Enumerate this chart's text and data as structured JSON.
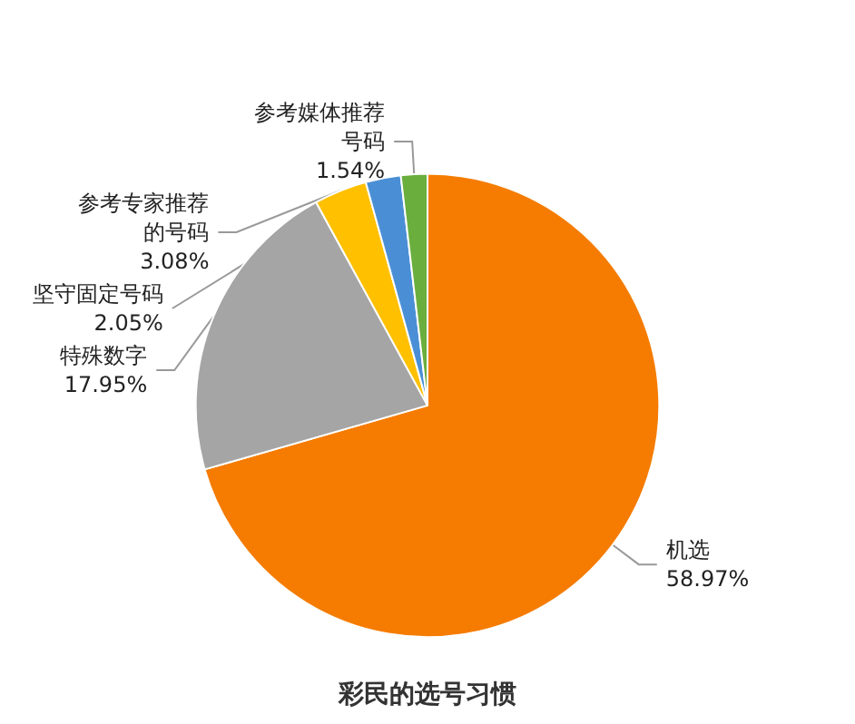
{
  "chart_data": {
    "type": "pie",
    "title": "彩民的选号习惯",
    "categories": [
      "机选",
      "特殊数字",
      "参考专家推荐的号码",
      "坚守固定号码",
      "参考媒体推荐号码"
    ],
    "values": [
      58.97,
      17.95,
      3.08,
      2.05,
      1.54
    ],
    "value_labels": [
      "58.97%",
      "17.95%",
      "3.08%",
      "2.05%",
      "1.54%"
    ],
    "colors": [
      "#f57c00",
      "#a5a5a5",
      "#ffc000",
      "#4a8fd6",
      "#6aae3e"
    ],
    "legend": false
  }
}
